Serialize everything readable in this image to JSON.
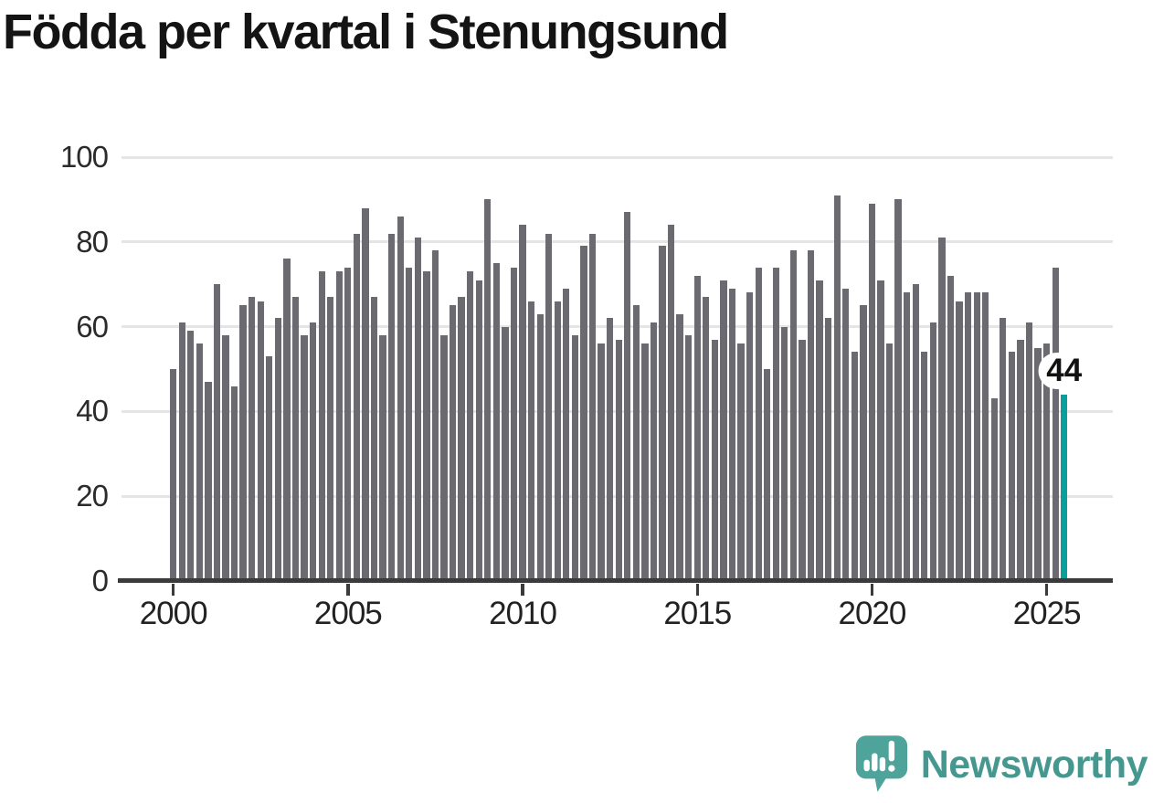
{
  "title": "Födda per kvartal i Stenungsund",
  "branding": {
    "name": "Newsworthy",
    "icon": "newsworthy-speech-bubble-chart-icon",
    "icon_color": "#4EA49B",
    "text_color": "#45988F"
  },
  "chart_data": {
    "type": "bar",
    "title": "Födda per kvartal i Stenungsund",
    "x_first_period": "2000 Q1",
    "x_last_period": "2025 Q3",
    "x_tick_labels": [
      "2000",
      "2005",
      "2010",
      "2015",
      "2020",
      "2025"
    ],
    "x_ticks_every_n_bars": 20,
    "y_ticks": [
      0,
      20,
      40,
      60,
      80,
      100
    ],
    "ylim": [
      0,
      100
    ],
    "grid": true,
    "legend": "none",
    "bar_color": "#6A6A70",
    "highlight_color": "#0A9F9A",
    "highlight_index": 102,
    "highlight_label": "44",
    "values": [
      50,
      61,
      59,
      56,
      47,
      70,
      58,
      46,
      65,
      67,
      66,
      53,
      62,
      76,
      67,
      58,
      61,
      73,
      67,
      73,
      74,
      82,
      88,
      67,
      58,
      82,
      86,
      74,
      81,
      73,
      78,
      58,
      65,
      67,
      73,
      71,
      90,
      75,
      60,
      74,
      84,
      66,
      63,
      82,
      66,
      69,
      58,
      79,
      82,
      56,
      62,
      57,
      87,
      65,
      56,
      61,
      79,
      84,
      63,
      58,
      72,
      67,
      57,
      71,
      69,
      56,
      68,
      74,
      50,
      74,
      60,
      78,
      57,
      78,
      71,
      62,
      91,
      69,
      54,
      65,
      89,
      71,
      56,
      90,
      68,
      70,
      54,
      61,
      81,
      72,
      66,
      68,
      68,
      68,
      43,
      62,
      54,
      57,
      61,
      55,
      56,
      74,
      44
    ]
  }
}
